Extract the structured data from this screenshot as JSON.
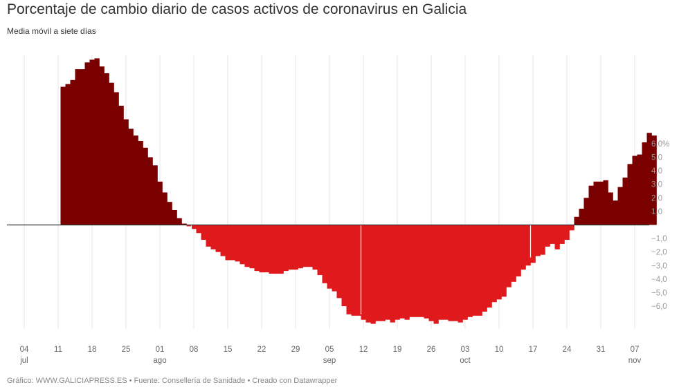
{
  "title": "Porcentaje de cambio diario de casos activos de coronavirus en Galicia",
  "subtitle": "Media móvil a siete días",
  "footer": "Gráfico: WWW.GALICIAPRESS.ES • Fuente: Consellería de Sanidade • Creado con Datawrapper",
  "colors": {
    "positive": "#7a0000",
    "negative": "#e0191c",
    "grid": "#e6e6e6",
    "zero": "#333333"
  },
  "chart_data": {
    "type": "bar",
    "start_date": "2020-07-04",
    "ylim": [
      -7.5,
      12.5
    ],
    "y_ticks": [
      {
        "value": 6,
        "label": "6,0%"
      },
      {
        "value": 5,
        "label": "5,0"
      },
      {
        "value": 4,
        "label": "4,0"
      },
      {
        "value": 3,
        "label": "3,0"
      },
      {
        "value": 2,
        "label": "2,0"
      },
      {
        "value": 1,
        "label": "1,0"
      },
      {
        "value": -1,
        "label": "−1,0"
      },
      {
        "value": -2,
        "label": "−2,0"
      },
      {
        "value": -3,
        "label": "−3,0"
      },
      {
        "value": -4,
        "label": "−4,0"
      },
      {
        "value": -5,
        "label": "−5,0"
      },
      {
        "value": -6,
        "label": "−6,0"
      }
    ],
    "x_ticks": [
      {
        "index": 0,
        "day": "04",
        "month": "jul"
      },
      {
        "index": 7,
        "day": "11",
        "month": ""
      },
      {
        "index": 14,
        "day": "18",
        "month": ""
      },
      {
        "index": 21,
        "day": "25",
        "month": ""
      },
      {
        "index": 28,
        "day": "01",
        "month": "ago"
      },
      {
        "index": 35,
        "day": "08",
        "month": ""
      },
      {
        "index": 42,
        "day": "15",
        "month": ""
      },
      {
        "index": 49,
        "day": "22",
        "month": ""
      },
      {
        "index": 56,
        "day": "29",
        "month": ""
      },
      {
        "index": 63,
        "day": "05",
        "month": "sep"
      },
      {
        "index": 70,
        "day": "12",
        "month": ""
      },
      {
        "index": 77,
        "day": "19",
        "month": ""
      },
      {
        "index": 84,
        "day": "26",
        "month": ""
      },
      {
        "index": 91,
        "day": "03",
        "month": "oct"
      },
      {
        "index": 98,
        "day": "10",
        "month": ""
      },
      {
        "index": 105,
        "day": "17",
        "month": ""
      },
      {
        "index": 112,
        "day": "24",
        "month": ""
      },
      {
        "index": 119,
        "day": "31",
        "month": ""
      },
      {
        "index": 126,
        "day": "07",
        "month": "nov"
      }
    ],
    "values": [
      0,
      0,
      0,
      0,
      0,
      0,
      0,
      0,
      10.2,
      10.4,
      10.7,
      11.5,
      11.5,
      12.0,
      12.2,
      12.3,
      11.7,
      11.2,
      10.5,
      9.8,
      8.8,
      7.8,
      7.1,
      6.6,
      6.2,
      5.7,
      5.0,
      4.4,
      3.2,
      2.4,
      1.7,
      1.1,
      0.5,
      0.1,
      -0.1,
      -0.3,
      -0.6,
      -1.1,
      -1.6,
      -1.8,
      -2.0,
      -2.3,
      -2.6,
      -2.6,
      -2.7,
      -2.9,
      -3.1,
      -3.2,
      -3.4,
      -3.5,
      -3.5,
      -3.6,
      -3.6,
      -3.6,
      -3.4,
      -3.3,
      -3.3,
      -3.2,
      -3.1,
      -3.1,
      -3.3,
      -3.7,
      -4.3,
      -4.7,
      -4.9,
      -5.4,
      -6.0,
      -6.6,
      -6.7,
      -6.7,
      -7.0,
      -7.2,
      -7.3,
      -7.1,
      -7.1,
      -7.0,
      -7.2,
      -7.0,
      -6.9,
      -7.0,
      -6.8,
      -6.8,
      -6.8,
      -6.9,
      -7.1,
      -7.3,
      -7.0,
      -7.0,
      -7.1,
      -7.1,
      -7.2,
      -7.0,
      -6.8,
      -6.7,
      -6.7,
      -6.4,
      -6.1,
      -5.7,
      -5.5,
      -5.3,
      -4.6,
      -4.2,
      -3.8,
      -3.3,
      -3.0,
      -2.8,
      -2.3,
      -2.2,
      -1.6,
      -1.4,
      -1.8,
      -1.4,
      -1.1,
      -0.4,
      0.6,
      1.2,
      2.0,
      2.9,
      3.2,
      3.2,
      3.3,
      2.4,
      1.8,
      2.8,
      3.5,
      4.5,
      5.1,
      5.2,
      6.1,
      6.8,
      6.6
    ]
  }
}
